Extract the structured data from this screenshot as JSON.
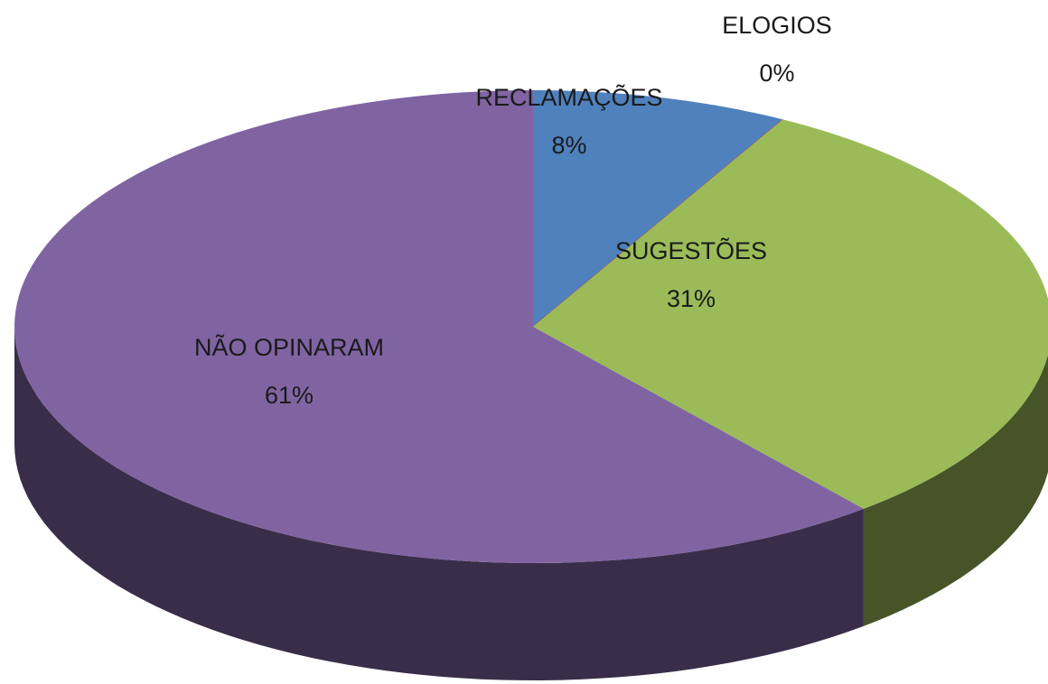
{
  "chart_data": {
    "type": "pie",
    "categories": [
      "RECLAMAÇÕES",
      "ELOGIOS",
      "SUGESTÕES",
      "NÃO OPINARAM"
    ],
    "values": [
      8,
      0,
      31,
      61
    ],
    "value_labels": [
      "8%",
      "0%",
      "31%",
      "61%"
    ],
    "colors": [
      "#4f81bd",
      "#c0504d",
      "#9bbb59",
      "#8064a2"
    ],
    "three_d": true
  }
}
